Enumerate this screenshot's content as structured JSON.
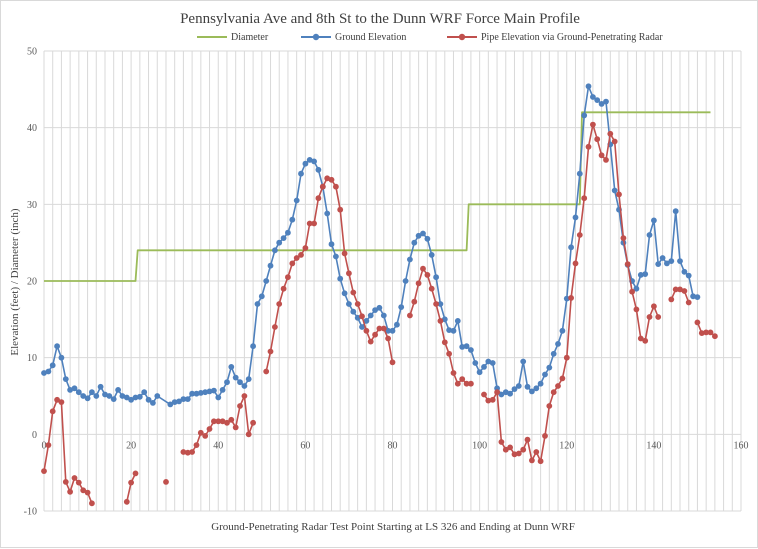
{
  "chart_data": {
    "type": "line",
    "title": "Pennsylvania Ave and 8th St to the Dunn WRF Force Main Profile",
    "xlabel": "Ground-Penetrating Radar Test Point Starting at LS 326 and Ending at Dunn WRF",
    "ylabel": "Elevation (feet) / Diameter (inch)",
    "xlim": [
      0,
      160
    ],
    "ylim": [
      -10,
      50
    ],
    "x_ticks": [
      "20",
      "40",
      "60",
      "80",
      "100",
      "120",
      "140",
      "160"
    ],
    "y_ticks": [
      "-10",
      "0",
      "10",
      "20",
      "30",
      "40",
      "50"
    ],
    "grid": true,
    "legend_position": "top",
    "series": [
      {
        "name": "Diameter",
        "color": "#9bbb59",
        "marker": false,
        "points": [
          [
            0,
            20
          ],
          [
            21,
            20
          ],
          [
            21.5,
            24
          ],
          [
            97,
            24
          ],
          [
            97.5,
            30
          ],
          [
            123,
            30
          ],
          [
            123.5,
            42
          ],
          [
            153,
            42
          ]
        ]
      },
      {
        "name": "Ground Elevation",
        "color": "#4f81bd",
        "marker": true,
        "points": [
          [
            0,
            8
          ],
          [
            1,
            8.2
          ],
          [
            2,
            9
          ],
          [
            3,
            11.5
          ],
          [
            4,
            10
          ],
          [
            5,
            7.2
          ],
          [
            6,
            5.8
          ],
          [
            7,
            6
          ],
          [
            8,
            5.5
          ],
          [
            9,
            5
          ],
          [
            10,
            4.7
          ],
          [
            11,
            5.5
          ],
          [
            12,
            5
          ],
          [
            13,
            6.2
          ],
          [
            14,
            5.2
          ],
          [
            15,
            5
          ],
          [
            16,
            4.6
          ],
          [
            17,
            5.8
          ],
          [
            18,
            5
          ],
          [
            19,
            4.8
          ],
          [
            20,
            4.5
          ],
          [
            21,
            4.8
          ],
          [
            22,
            4.9
          ],
          [
            23,
            5.5
          ],
          [
            24,
            4.5
          ],
          [
            25,
            4.1
          ],
          [
            26,
            5
          ],
          [
            29,
            3.9
          ],
          [
            30,
            4.2
          ],
          [
            31,
            4.3
          ],
          [
            32,
            4.6
          ],
          [
            33,
            4.6
          ],
          [
            34,
            5.3
          ],
          [
            35,
            5.3
          ],
          [
            36,
            5.4
          ],
          [
            37,
            5.5
          ],
          [
            38,
            5.6
          ],
          [
            39,
            5.7
          ],
          [
            40,
            4.8
          ],
          [
            41,
            5.8
          ],
          [
            42,
            6.8
          ],
          [
            43,
            8.8
          ],
          [
            44,
            7.4
          ],
          [
            45,
            6.8
          ],
          [
            46,
            6.3
          ],
          [
            47,
            7.2
          ],
          [
            48,
            11.5
          ],
          [
            49,
            17
          ],
          [
            50,
            18
          ],
          [
            51,
            20
          ],
          [
            52,
            22
          ],
          [
            53,
            24
          ],
          [
            54,
            25
          ],
          [
            55,
            25.6
          ],
          [
            56,
            26.3
          ],
          [
            57,
            28
          ],
          [
            58,
            30.5
          ],
          [
            59,
            34
          ],
          [
            60,
            35.3
          ],
          [
            61,
            35.8
          ],
          [
            62,
            35.6
          ],
          [
            63,
            34.5
          ],
          [
            64,
            32.3
          ],
          [
            65,
            28.8
          ],
          [
            66,
            24.8
          ],
          [
            67,
            23.2
          ],
          [
            68,
            20.3
          ],
          [
            69,
            18.4
          ],
          [
            70,
            17
          ],
          [
            71,
            16
          ],
          [
            72,
            15.2
          ],
          [
            73,
            14
          ],
          [
            74,
            14.8
          ],
          [
            75,
            15.5
          ],
          [
            76,
            16.2
          ],
          [
            77,
            16.5
          ],
          [
            78,
            15.5
          ],
          [
            79,
            13.5
          ],
          [
            80,
            13.5
          ],
          [
            81,
            14.3
          ],
          [
            82,
            16.6
          ],
          [
            83,
            20
          ],
          [
            84,
            22.8
          ],
          [
            85,
            25
          ],
          [
            86,
            25.9
          ],
          [
            87,
            26.2
          ],
          [
            88,
            25.5
          ],
          [
            89,
            23.4
          ],
          [
            90,
            20.5
          ],
          [
            91,
            17
          ],
          [
            92,
            15
          ],
          [
            93,
            13.6
          ],
          [
            94,
            13.5
          ],
          [
            95,
            14.8
          ],
          [
            96,
            11.4
          ],
          [
            97,
            11.5
          ],
          [
            98,
            11
          ],
          [
            99,
            9.3
          ],
          [
            100,
            8.1
          ],
          [
            101,
            8.8
          ],
          [
            102,
            9.5
          ],
          [
            103,
            9.3
          ],
          [
            104,
            6
          ],
          [
            105,
            5.2
          ],
          [
            106,
            5.5
          ],
          [
            107,
            5.3
          ],
          [
            108,
            5.9
          ],
          [
            109,
            6.3
          ],
          [
            110,
            9.5
          ],
          [
            111,
            6.2
          ],
          [
            112,
            5.6
          ],
          [
            113,
            6
          ],
          [
            114,
            6.6
          ],
          [
            115,
            7.8
          ],
          [
            116,
            8.7
          ],
          [
            117,
            10.5
          ],
          [
            118,
            11.8
          ],
          [
            119,
            13.5
          ],
          [
            120,
            17.7
          ],
          [
            121,
            24.4
          ],
          [
            122,
            28.3
          ],
          [
            123,
            34
          ],
          [
            124,
            41.6
          ],
          [
            125,
            45.4
          ],
          [
            126,
            44
          ],
          [
            127,
            43.6
          ],
          [
            128,
            43.1
          ],
          [
            129,
            43.4
          ],
          [
            130,
            37.8
          ],
          [
            131,
            31.8
          ],
          [
            132,
            29.3
          ],
          [
            133,
            25
          ],
          [
            134,
            22.1
          ],
          [
            135,
            20
          ],
          [
            136,
            19
          ],
          [
            137,
            20.8
          ],
          [
            138,
            20.9
          ],
          [
            139,
            26
          ],
          [
            140,
            27.9
          ],
          [
            141,
            22.2
          ],
          [
            142,
            23
          ],
          [
            143,
            22.3
          ],
          [
            144,
            22.6
          ],
          [
            145,
            29.1
          ],
          [
            146,
            22.6
          ],
          [
            147,
            21.2
          ],
          [
            148,
            20.7
          ],
          [
            149,
            18
          ],
          [
            150,
            17.9
          ]
        ]
      },
      {
        "name": "Pipe Elevation via  Ground-Penetrating Radar",
        "color": "#c0504d",
        "marker": true,
        "points": [
          [
            0,
            -4.8
          ],
          [
            1,
            -1.4
          ],
          [
            2,
            3
          ],
          [
            3,
            4.5
          ],
          [
            4,
            4.2
          ],
          [
            5,
            -6.2
          ],
          [
            6,
            -7.5
          ],
          [
            7,
            -5.7
          ],
          [
            8,
            -6.3
          ],
          [
            9,
            -7.3
          ],
          [
            10,
            -7.6
          ],
          [
            11,
            -9
          ],
          null,
          [
            19,
            -8.8
          ],
          [
            20,
            -6.3
          ],
          [
            21,
            -5.1
          ],
          null,
          [
            28,
            -6.2
          ],
          null,
          [
            32,
            -2.3
          ],
          [
            33,
            -2.4
          ],
          [
            34,
            -2.3
          ],
          [
            35,
            -1.4
          ],
          [
            36,
            0.2
          ],
          [
            37,
            -0.2
          ],
          [
            38,
            0.7
          ],
          [
            39,
            1.7
          ],
          [
            40,
            1.7
          ],
          [
            41,
            1.7
          ],
          [
            42,
            1.5
          ],
          [
            43,
            1.9
          ],
          [
            44,
            0.9
          ],
          [
            45,
            3.7
          ],
          [
            46,
            5
          ],
          [
            47,
            0
          ],
          [
            48,
            1.5
          ],
          null,
          [
            51,
            8.2
          ],
          [
            52,
            10.8
          ],
          [
            53,
            14
          ],
          [
            54,
            17
          ],
          [
            55,
            19
          ],
          [
            56,
            20.5
          ],
          [
            57,
            22.3
          ],
          [
            58,
            23
          ],
          [
            59,
            23.4
          ],
          [
            60,
            24.3
          ],
          [
            61,
            27.5
          ],
          [
            62,
            27.5
          ],
          [
            63,
            30.8
          ],
          [
            64,
            32.3
          ],
          [
            65,
            33.4
          ],
          [
            66,
            33.2
          ],
          [
            67,
            32.3
          ],
          [
            68,
            29.3
          ],
          [
            69,
            23.6
          ],
          [
            70,
            21
          ],
          [
            71,
            18.5
          ],
          [
            72,
            17
          ],
          [
            73,
            15.4
          ],
          [
            74,
            13.5
          ],
          [
            75,
            12.1
          ],
          [
            76,
            13
          ],
          [
            77,
            13.8
          ],
          [
            78,
            13.8
          ],
          [
            79,
            12.5
          ],
          [
            80,
            9.4
          ],
          null,
          [
            84,
            15.5
          ],
          [
            85,
            17.3
          ],
          [
            86,
            19.7
          ],
          [
            87,
            21.6
          ],
          [
            88,
            20.8
          ],
          [
            89,
            19
          ],
          [
            90,
            17
          ],
          [
            91,
            14.8
          ],
          [
            92,
            12
          ],
          [
            93,
            10.5
          ],
          [
            94,
            8
          ],
          [
            95,
            6.6
          ],
          [
            96,
            7.2
          ],
          [
            97,
            6.6
          ],
          [
            98,
            6.6
          ],
          null,
          [
            101,
            5.2
          ],
          [
            102,
            4.4
          ],
          [
            103,
            4.5
          ],
          [
            104,
            5.5
          ],
          [
            105,
            -1
          ],
          [
            106,
            -2
          ],
          [
            107,
            -1.7
          ],
          [
            108,
            -2.6
          ],
          [
            109,
            -2.5
          ],
          [
            110,
            -2
          ],
          [
            111,
            -0.7
          ],
          [
            112,
            -3.4
          ],
          [
            113,
            -2.3
          ],
          [
            114,
            -3.5
          ],
          [
            115,
            -0.2
          ],
          [
            116,
            3.7
          ],
          [
            117,
            5.5
          ],
          [
            118,
            6.3
          ],
          [
            119,
            7.3
          ],
          [
            120,
            10
          ],
          [
            121,
            17.8
          ],
          [
            122,
            22.3
          ],
          [
            123,
            26
          ],
          [
            124,
            30.8
          ],
          [
            125,
            37.5
          ],
          [
            126,
            40.4
          ],
          [
            127,
            38.5
          ],
          [
            128,
            36.4
          ],
          [
            129,
            35.8
          ],
          [
            130,
            39.2
          ],
          [
            131,
            38.2
          ],
          [
            132,
            31.3
          ],
          [
            133,
            25.6
          ],
          [
            134,
            22.2
          ],
          [
            135,
            18.6
          ],
          [
            136,
            16.3
          ],
          [
            137,
            12.5
          ],
          [
            138,
            12.2
          ],
          [
            139,
            15.3
          ],
          [
            140,
            16.7
          ],
          [
            141,
            15.3
          ],
          null,
          [
            144,
            17.6
          ],
          [
            145,
            18.9
          ],
          [
            146,
            18.9
          ],
          [
            147,
            18.7
          ],
          [
            148,
            17.2
          ],
          null,
          [
            150,
            14.6
          ],
          [
            151,
            13.2
          ],
          [
            152,
            13.3
          ],
          [
            153,
            13.3
          ],
          [
            154,
            12.8
          ]
        ]
      }
    ]
  }
}
